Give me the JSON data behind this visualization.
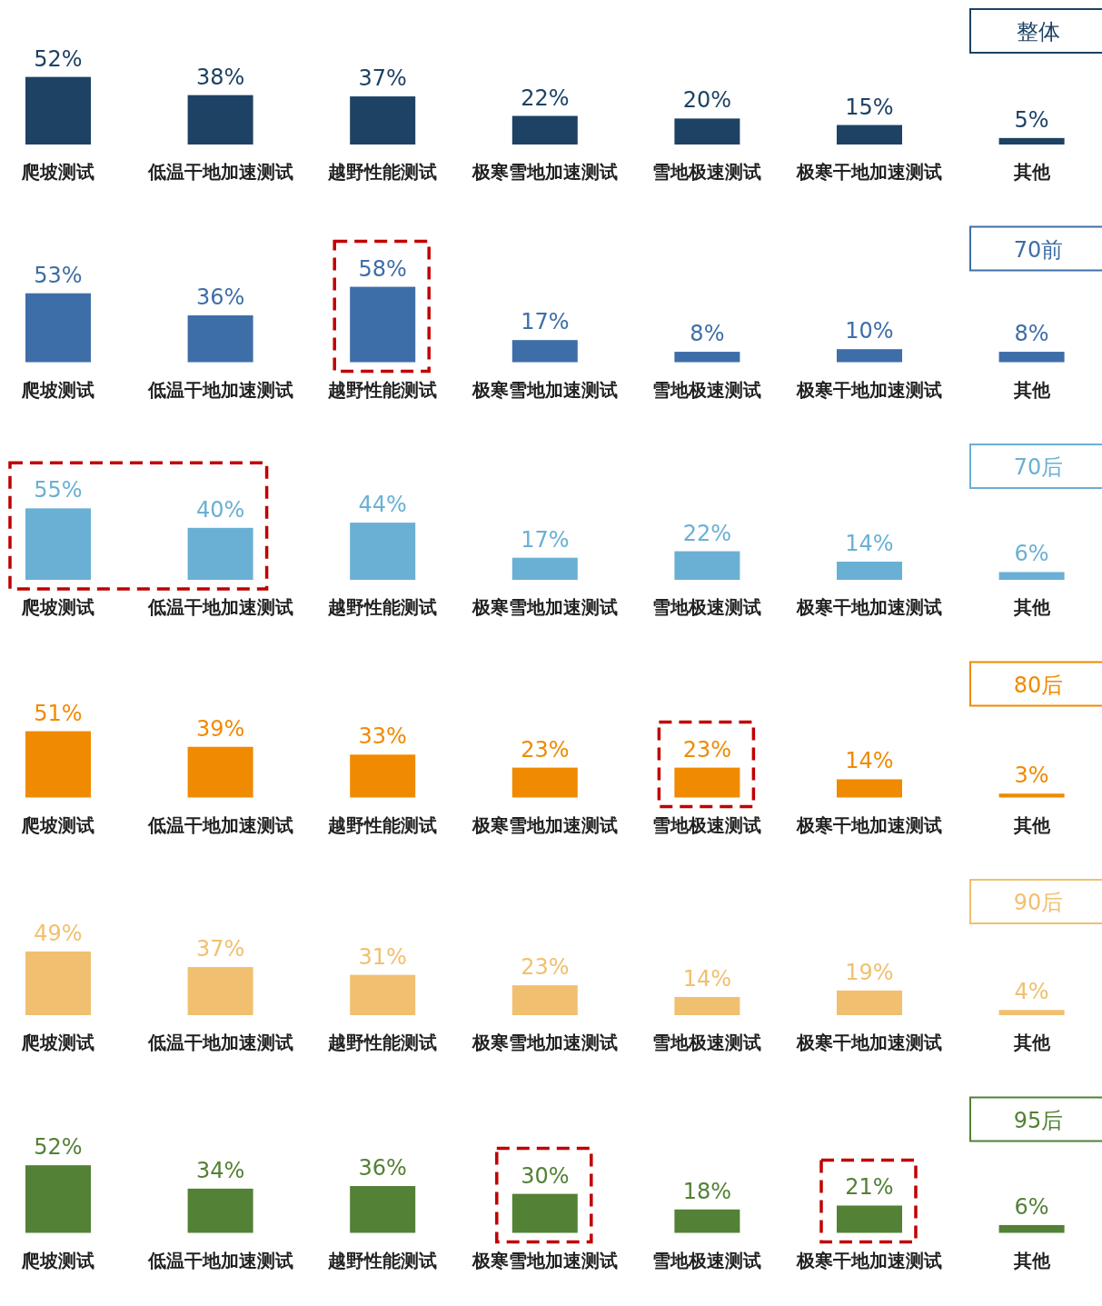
{
  "chart_data": [
    {
      "type": "bar",
      "title": "整体",
      "color": "#1d4264",
      "categories": [
        "爬坡测试",
        "低温干地加速测试",
        "越野性能测试",
        "极寒雪地加速测试",
        "雪地极速测试",
        "极寒干地加速测试",
        "其他"
      ],
      "values": [
        52,
        38,
        37,
        22,
        20,
        15,
        5
      ],
      "value_labels": [
        "52%",
        "38%",
        "37%",
        "22%",
        "20%",
        "15%",
        "5%"
      ]
    },
    {
      "type": "bar",
      "title": "70前",
      "color": "#3e6ea8",
      "categories": [
        "爬坡测试",
        "低温干地加速测试",
        "越野性能测试",
        "极寒雪地加速测试",
        "雪地极速测试",
        "极寒干地加速测试",
        "其他"
      ],
      "values": [
        53,
        36,
        58,
        17,
        8,
        10,
        8
      ],
      "value_labels": [
        "53%",
        "36%",
        "58%",
        "17%",
        "8%",
        "10%",
        "8%"
      ]
    },
    {
      "type": "bar",
      "title": "70后",
      "color": "#6ab0d4",
      "categories": [
        "爬坡测试",
        "低温干地加速测试",
        "越野性能测试",
        "极寒雪地加速测试",
        "雪地极速测试",
        "极寒干地加速测试",
        "其他"
      ],
      "values": [
        55,
        40,
        44,
        17,
        22,
        14,
        6
      ],
      "value_labels": [
        "55%",
        "40%",
        "44%",
        "17%",
        "22%",
        "14%",
        "6%"
      ]
    },
    {
      "type": "bar",
      "title": "80后",
      "color": "#f08a00",
      "categories": [
        "爬坡测试",
        "低温干地加速测试",
        "越野性能测试",
        "极寒雪地加速测试",
        "雪地极速测试",
        "极寒干地加速测试",
        "其他"
      ],
      "values": [
        51,
        39,
        33,
        23,
        23,
        14,
        3
      ],
      "value_labels": [
        "51%",
        "39%",
        "33%",
        "23%",
        "23%",
        "14%",
        "3%"
      ]
    },
    {
      "type": "bar",
      "title": "90后",
      "color": "#f0c070",
      "categories": [
        "爬坡测试",
        "低温干地加速测试",
        "越野性能测试",
        "极寒雪地加速测试",
        "雪地极速测试",
        "极寒干地加速测试",
        "其他"
      ],
      "values": [
        49,
        37,
        31,
        23,
        14,
        19,
        4
      ],
      "value_labels": [
        "49%",
        "37%",
        "31%",
        "23%",
        "14%",
        "19%",
        "4%"
      ]
    },
    {
      "type": "bar",
      "title": "95后",
      "color": "#538135",
      "categories": [
        "爬坡测试",
        "低温干地加速测试",
        "越野性能测试",
        "极寒雪地加速测试",
        "雪地极速测试",
        "极寒干地加速测试",
        "其他"
      ],
      "values": [
        52,
        34,
        36,
        30,
        18,
        21,
        6
      ],
      "value_labels": [
        "52%",
        "34%",
        "36%",
        "30%",
        "18%",
        "21%",
        "6%"
      ]
    }
  ]
}
